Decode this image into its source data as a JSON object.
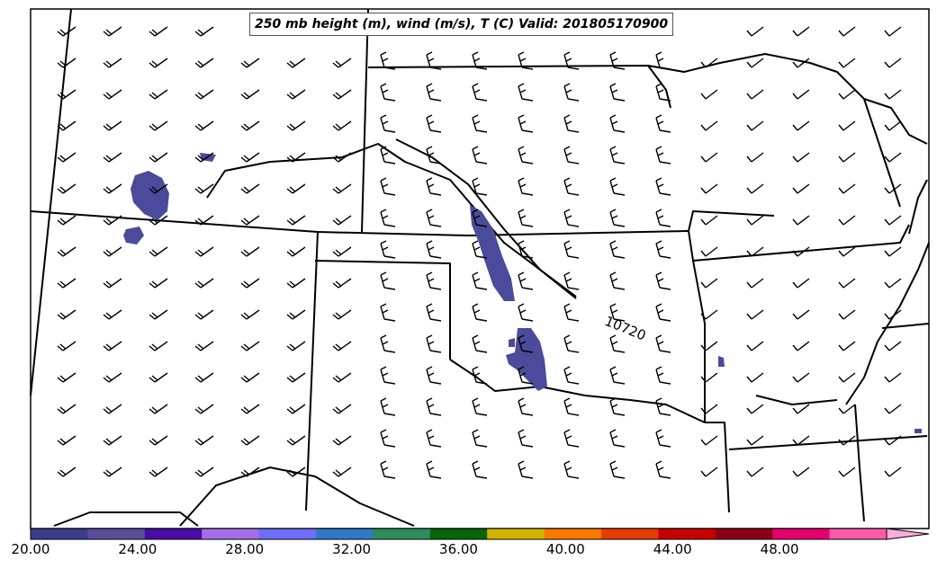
{
  "title": "250 mb height (m), wind (m/s), T (C) Valid: 201805170900",
  "contour_label": "10720",
  "colorbar": {
    "ticks": [
      "20.00",
      "24.00",
      "28.00",
      "32.00",
      "36.00",
      "40.00",
      "44.00",
      "48.00"
    ],
    "min": 20,
    "max": 52,
    "step": 2,
    "colors": [
      "#3c3c8c",
      "#5a4e9b",
      "#4a0ca5",
      "#a66ee6",
      "#6e6efa",
      "#3278c8",
      "#2d8c5a",
      "#0a640a",
      "#d2b400",
      "#fa7800",
      "#e63c00",
      "#c80000",
      "#8c0014",
      "#e6006e",
      "#fa5aaa"
    ],
    "extend_color": "#ffaadc"
  },
  "overlay_color": "#4b4b9b"
}
